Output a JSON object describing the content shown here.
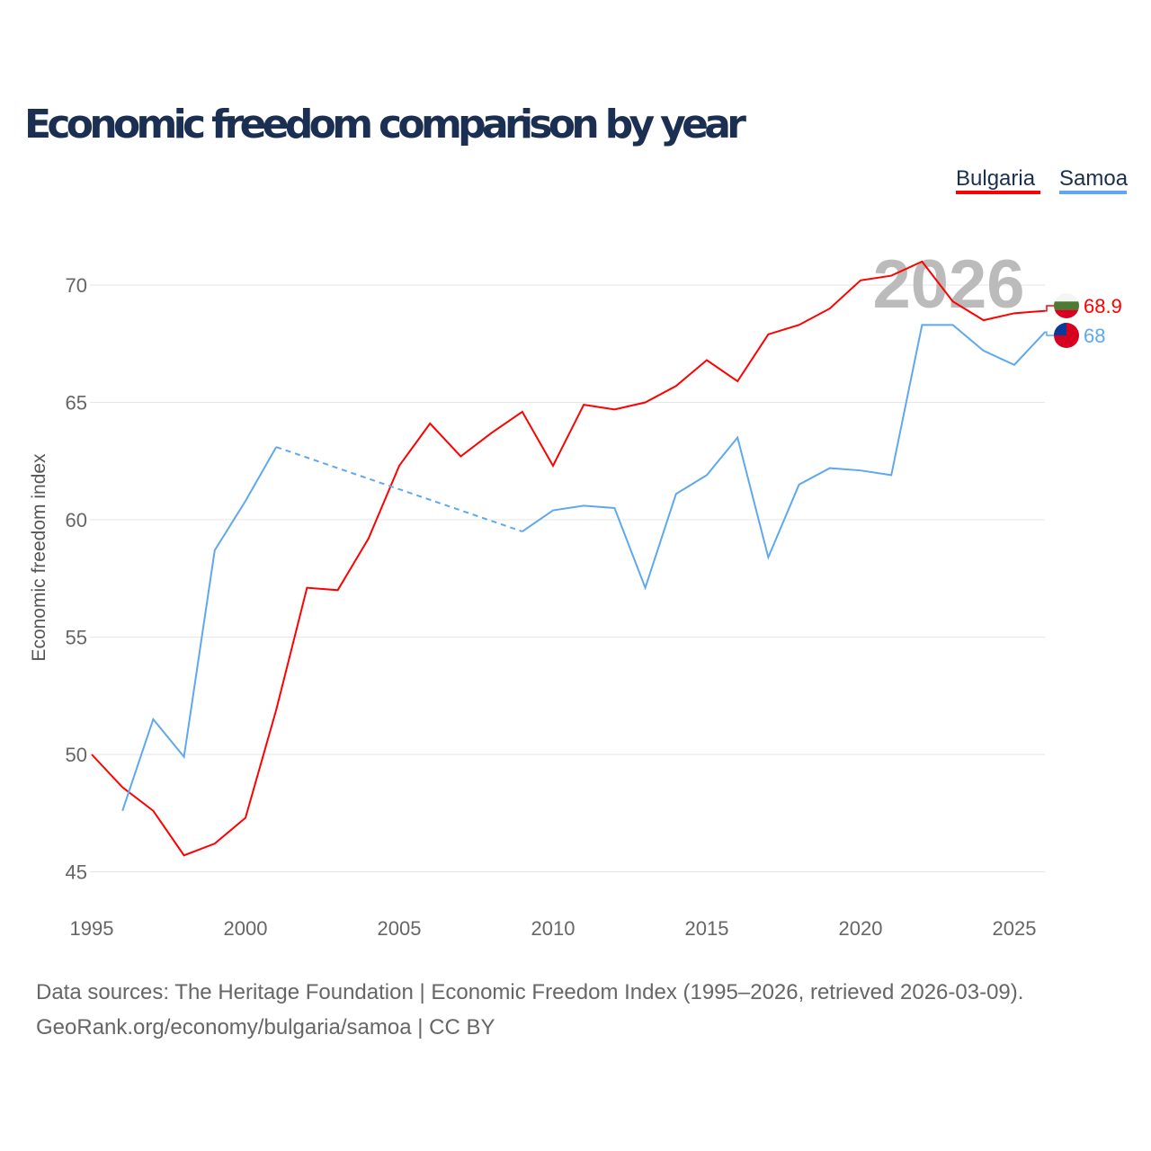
{
  "chart_data": {
    "type": "line",
    "title": "Economic freedom comparison by year",
    "ylabel": "Economic freedom index",
    "xlabel": "",
    "ylim": [
      44,
      72
    ],
    "xlim": [
      1995,
      2026
    ],
    "x_ticks": [
      "1995",
      "2000",
      "2005",
      "2010",
      "2015",
      "2020",
      "2025"
    ],
    "y_ticks": [
      "45",
      "50",
      "55",
      "60",
      "65",
      "70"
    ],
    "grid": true,
    "legend_position": "top-right",
    "year_label": "2026",
    "series": [
      {
        "name": "Bulgaria",
        "color": "#ff0000",
        "end_label": "68.9",
        "x": [
          1995,
          1996,
          1997,
          1998,
          1999,
          2000,
          2001,
          2002,
          2003,
          2004,
          2005,
          2006,
          2007,
          2008,
          2009,
          2010,
          2011,
          2012,
          2013,
          2014,
          2015,
          2016,
          2017,
          2018,
          2019,
          2020,
          2021,
          2022,
          2023,
          2024,
          2025,
          2026
        ],
        "values": [
          50.0,
          48.6,
          47.6,
          45.7,
          46.2,
          47.3,
          51.9,
          57.1,
          57.0,
          59.2,
          62.3,
          64.1,
          62.7,
          63.7,
          64.6,
          62.3,
          64.9,
          64.7,
          65.0,
          65.7,
          66.8,
          65.9,
          67.9,
          68.3,
          69.0,
          70.2,
          70.4,
          71.0,
          69.3,
          68.5,
          68.8,
          68.9
        ]
      },
      {
        "name": "Samoa",
        "color": "#5ea8ee",
        "end_label": "68",
        "x": [
          1996,
          1997,
          1998,
          1999,
          2000,
          2001,
          2009,
          2010,
          2011,
          2012,
          2013,
          2014,
          2015,
          2016,
          2017,
          2018,
          2019,
          2020,
          2021,
          2022,
          2023,
          2024,
          2025,
          2026
        ],
        "values": [
          47.6,
          51.5,
          49.9,
          58.7,
          60.8,
          63.1,
          59.5,
          60.4,
          60.6,
          60.5,
          57.1,
          61.1,
          61.9,
          63.5,
          58.4,
          61.5,
          62.2,
          62.1,
          61.9,
          68.3,
          68.3,
          67.2,
          66.6,
          68.0
        ],
        "gap": [
          2001,
          2009
        ]
      }
    ]
  },
  "footer": {
    "line1": "Data sources: The Heritage Foundation | Economic Freedom Index (1995–2026, retrieved 2026-03-09).",
    "line2": "GeoRank.org/economy/bulgaria/samoa | CC BY"
  }
}
